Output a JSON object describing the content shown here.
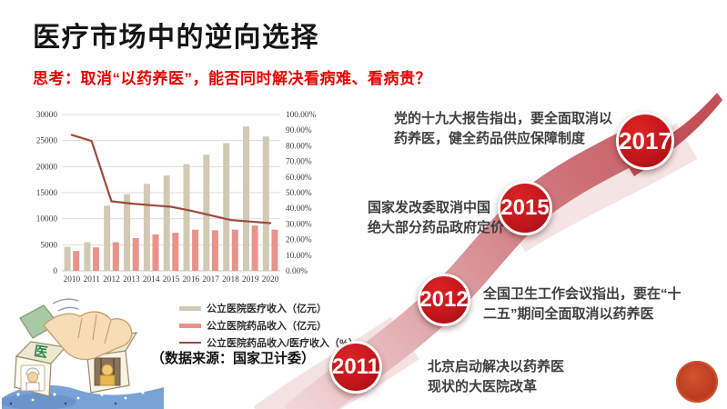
{
  "slide": {
    "title": "医疗市场中的逆向选择",
    "subtitle": "思考：取消“以药养医”，能否同时解决看病难、看病贵？",
    "source_note": "（数据来源：国家卫计委）",
    "accent_red": "#c4161c",
    "subtitle_red": "#e30505"
  },
  "chart_data": {
    "type": "bar",
    "title": "",
    "categories": [
      "2010",
      "2011",
      "2012",
      "2013",
      "2014",
      "2015",
      "2016",
      "2017",
      "2018",
      "2019",
      "2020"
    ],
    "series": [
      {
        "name": "公立医院医疗收入（亿元）",
        "type": "bar",
        "axis": "left",
        "color": "#d2c9b4",
        "values": [
          4600,
          5500,
          12500,
          14700,
          16700,
          18300,
          20500,
          22300,
          24500,
          27700,
          25800
        ]
      },
      {
        "name": "公立医院药品收入（亿元）",
        "type": "bar",
        "axis": "left",
        "color": "#e8948b",
        "values": [
          3800,
          4500,
          5500,
          6300,
          7000,
          7300,
          7900,
          7800,
          7900,
          8700,
          7900
        ]
      },
      {
        "name": "公立医院药品收入/医疗收入（%）",
        "type": "line",
        "axis": "right",
        "color": "#9c4a3e",
        "values": [
          87,
          83,
          44.5,
          43,
          42,
          41,
          38.5,
          35.5,
          32.5,
          31.5,
          30.5
        ]
      }
    ],
    "left_axis": {
      "min": 0,
      "max": 30000,
      "step": 5000,
      "labels": [
        "30000",
        "25000",
        "20000",
        "15000",
        "10000",
        "5000",
        "0"
      ]
    },
    "right_axis": {
      "min": 0,
      "max": 100,
      "step": 10,
      "labels": [
        "100.00%",
        "90.00%",
        "80.00%",
        "70.00%",
        "60.00%",
        "50.00%",
        "40.00%",
        "30.00%",
        "20.00%",
        "10.00%",
        "0.00%"
      ]
    },
    "grid": true,
    "legend_position": "below-right",
    "xlabel": "",
    "ylabel": ""
  },
  "timeline": {
    "accent_color": "#c4161c",
    "ribbon_colors": [
      "#f1d6d7",
      "#e0a8ab",
      "#d0797e",
      "#c25159"
    ],
    "events": [
      {
        "year": "2011",
        "text": "北京启动解决以药养医\n现状的大医院改革"
      },
      {
        "year": "2012",
        "text": "全国卫生工作会议指出，要在“十\n二五”期间全面取消以药养医"
      },
      {
        "year": "2015",
        "text": "国家发改委取消中国\n绝大部分药品政府定价"
      },
      {
        "year": "2017",
        "text": "党的十九大报告指出，要全面取消以\n药养医，健全药品供应保障制度"
      }
    ]
  },
  "illustration": {
    "cube_left_label": "医",
    "cube_right_label": "药",
    "label_color": "#2e8b4f"
  },
  "seal": {
    "name": "red-seal",
    "color": "#bd3a20"
  }
}
